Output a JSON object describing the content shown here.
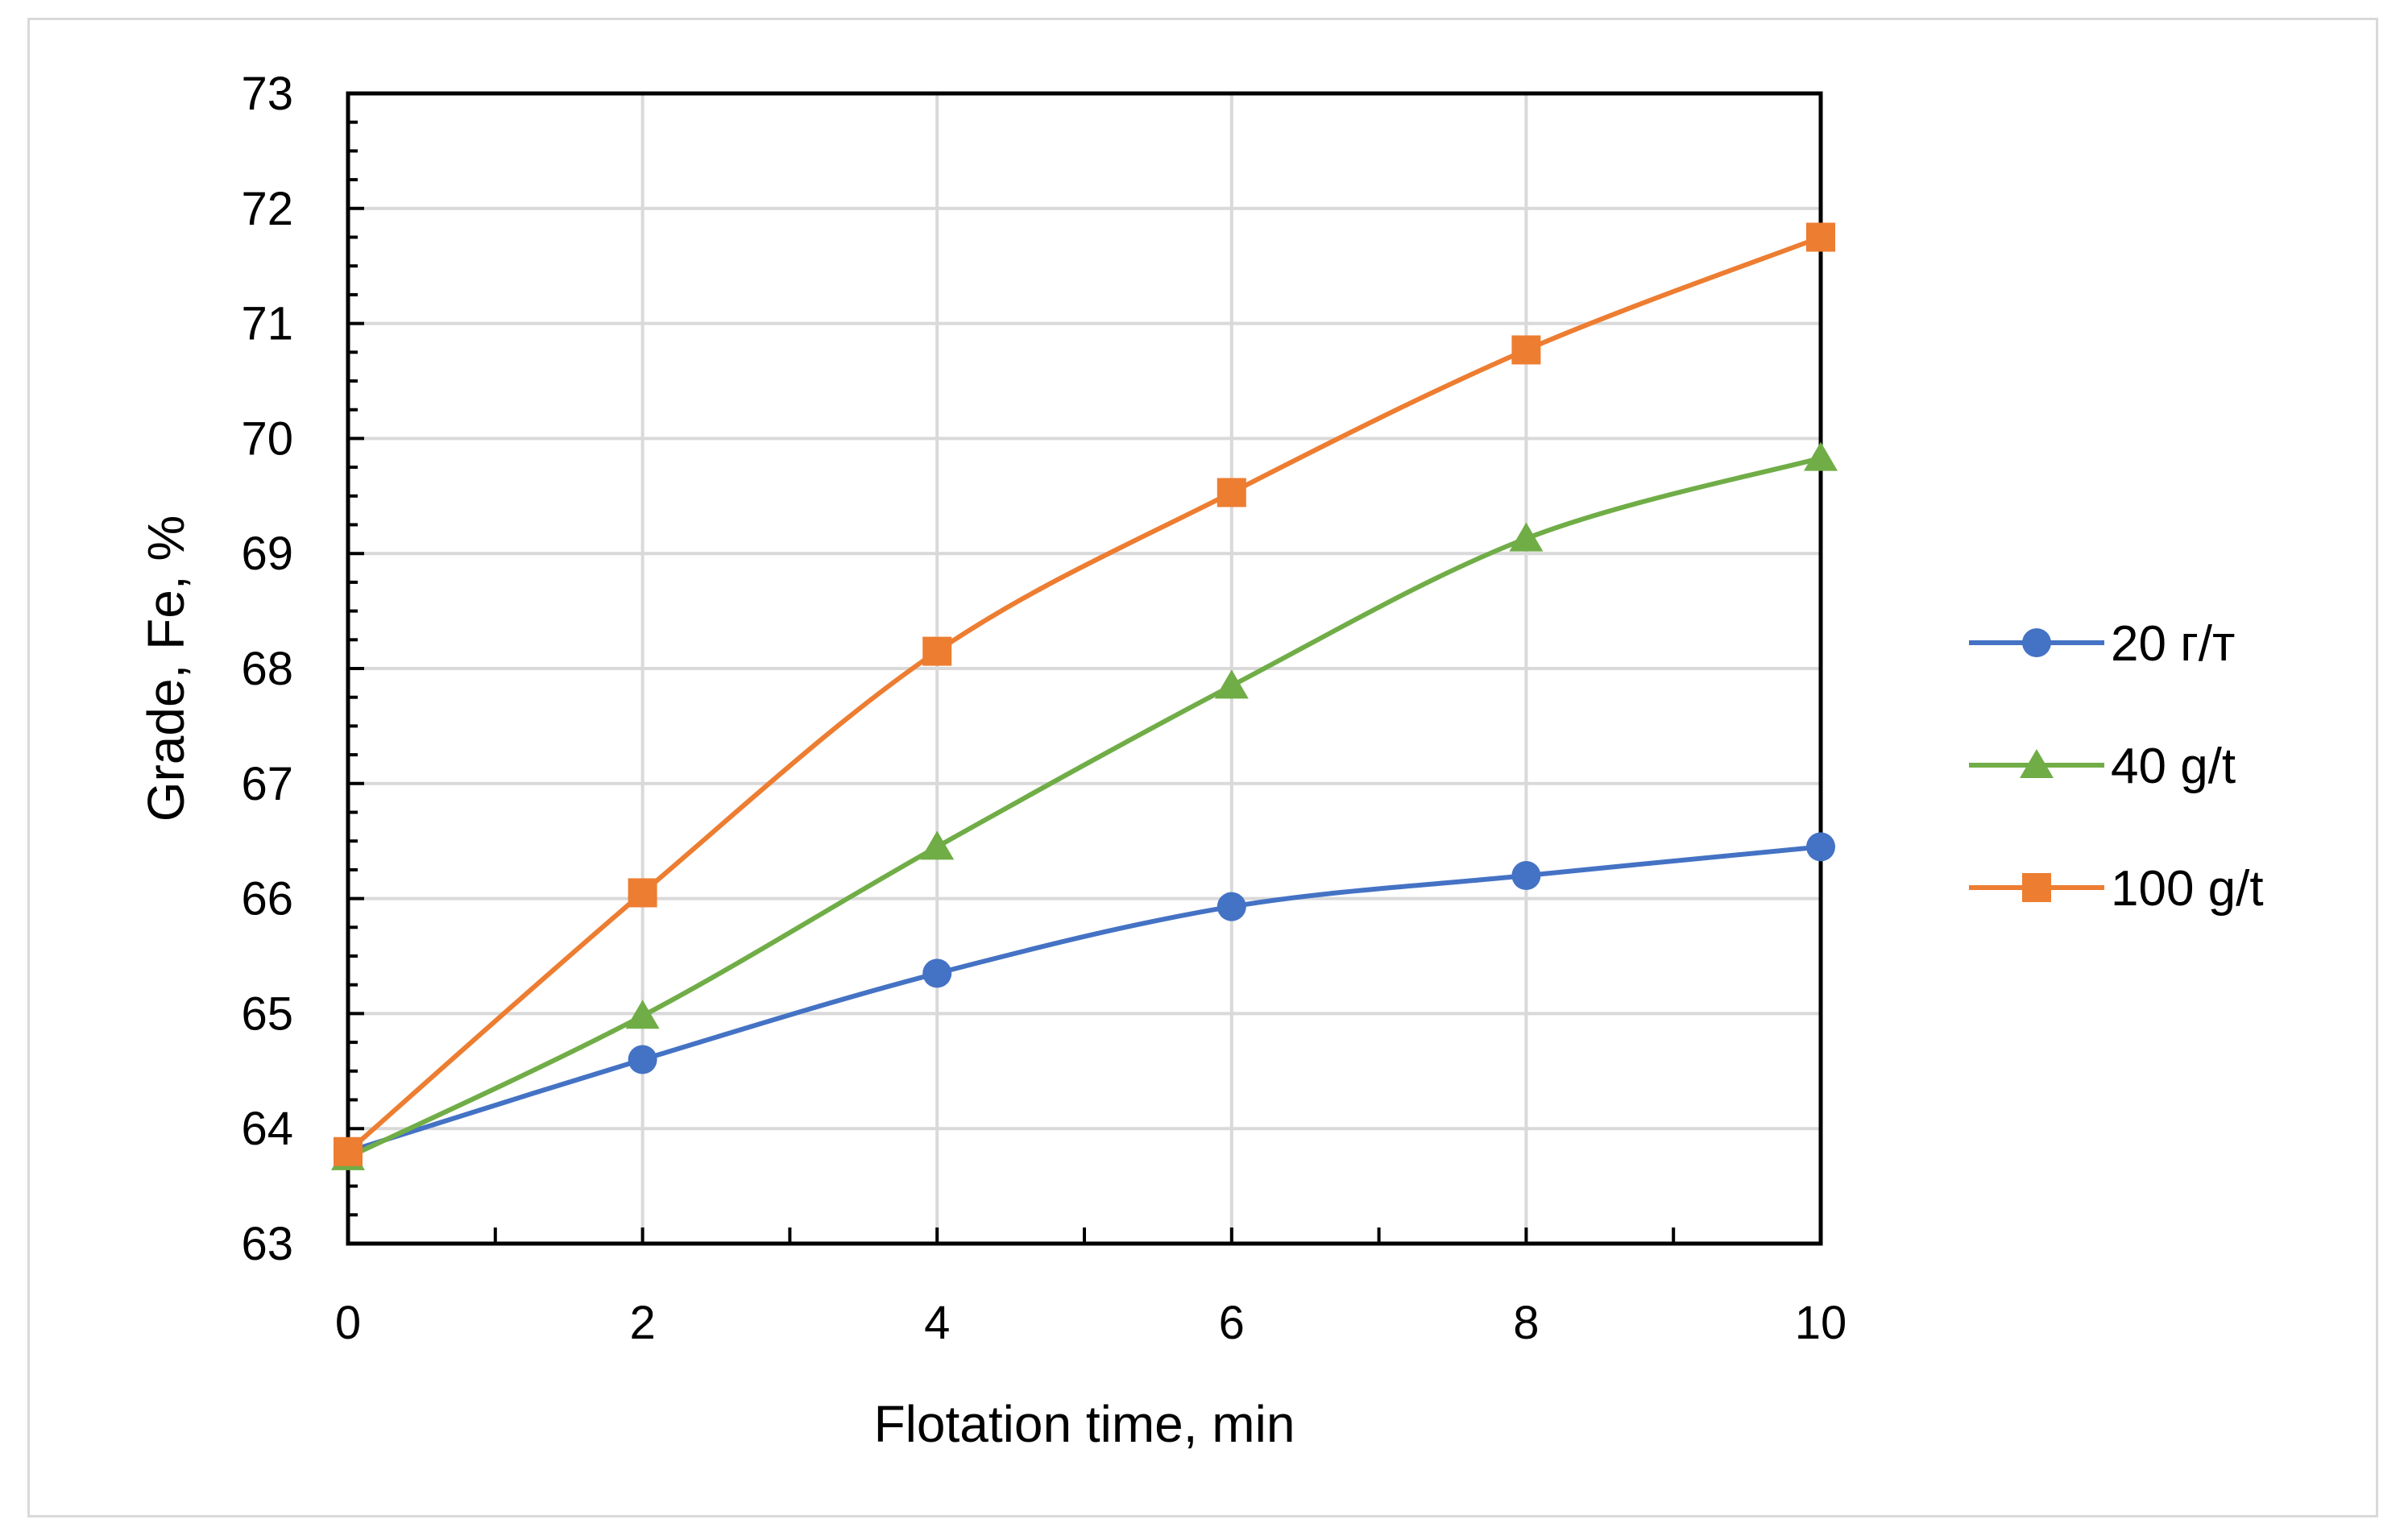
{
  "chart_data": {
    "type": "line",
    "xlabel": "Flotation time, min",
    "ylabel": "Grade, Fe, %",
    "xlim": [
      0,
      10
    ],
    "ylim": [
      63,
      73
    ],
    "x_major_ticks": [
      0,
      2,
      4,
      6,
      8,
      10
    ],
    "x_minor_ticks": [
      1,
      3,
      5,
      7,
      9
    ],
    "y_ticks": [
      63,
      64,
      65,
      66,
      67,
      68,
      69,
      70,
      71,
      72,
      73
    ],
    "grid": true,
    "legend_position": "right",
    "x": [
      0,
      2,
      4,
      6,
      8,
      10
    ],
    "series": [
      {
        "name": "20 г/т",
        "color": "#4472C4",
        "marker": "circle",
        "values": [
          63.8,
          64.6,
          65.35,
          65.93,
          66.2,
          66.45
        ]
      },
      {
        "name": "40 g/t",
        "color": "#70AD47",
        "marker": "triangle",
        "values": [
          63.75,
          64.98,
          66.45,
          67.85,
          69.13,
          69.83
        ]
      },
      {
        "name": "100 g/t",
        "color": "#ED7D31",
        "marker": "square",
        "values": [
          63.8,
          66.05,
          68.15,
          69.53,
          70.77,
          71.75
        ]
      }
    ]
  }
}
